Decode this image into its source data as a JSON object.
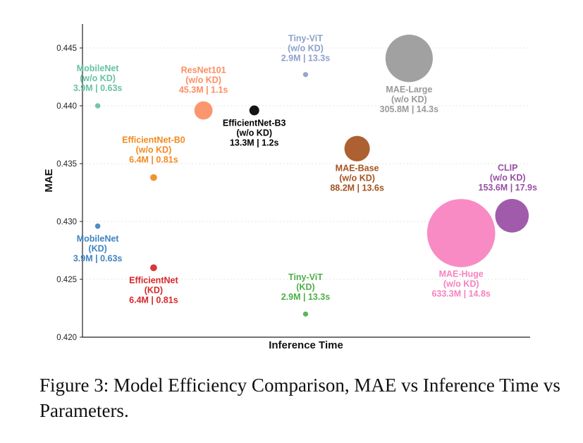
{
  "caption": "Figure 3: Model Efficiency Comparison, MAE vs Inference Time vs Parameters.",
  "chart_data": {
    "type": "scatter",
    "title": "",
    "xlabel": "Inference Time",
    "ylabel": "MAE",
    "ylim": [
      0.42,
      0.447
    ],
    "yticks": [
      0.42,
      0.425,
      0.43,
      0.435,
      0.44,
      0.445
    ],
    "ytick_labels": [
      "0.420",
      "0.425",
      "0.430",
      "0.435",
      "0.440",
      "0.445"
    ],
    "xlim": [
      0,
      18.5
    ],
    "x_ticks_shown": false,
    "grid": "horizontal dotted",
    "size_encodes": "parameters (M)",
    "points": [
      {
        "name": "MobileNet (w/o KD)",
        "label": [
          "MobileNet",
          "(w/o KD)",
          "3.9M | 0.63s"
        ],
        "x": 0.63,
        "y": 0.44,
        "params": 3.9,
        "color": "#66c2a5"
      },
      {
        "name": "MobileNet (KD)",
        "label": [
          "MobileNet",
          "(KD)",
          "3.9M | 0.63s"
        ],
        "x": 0.63,
        "y": 0.4296,
        "params": 3.9,
        "color": "#3f83bf"
      },
      {
        "name": "EfficientNet-B0 (w/o KD)",
        "label": [
          "EfficientNet-B0",
          "(w/o KD)",
          "6.4M | 0.81s"
        ],
        "x": 2.94,
        "y": 0.4338,
        "params": 6.4,
        "color": "#f28a1e"
      },
      {
        "name": "EfficientNet (KD)",
        "label": [
          "EfficientNet",
          "(KD)",
          "6.4M | 0.81s"
        ],
        "x": 2.94,
        "y": 0.426,
        "params": 6.4,
        "color": "#d62728"
      },
      {
        "name": "ResNet101 (w/o KD)",
        "label": [
          "ResNet101",
          "(w/o KD)",
          "45.3M | 1.1s"
        ],
        "x": 5.0,
        "y": 0.4396,
        "params": 45.3,
        "color": "#fc8d62"
      },
      {
        "name": "EfficientNet-B3 (w/o KD)",
        "label": [
          "EfficientNet-B3",
          "(w/o KD)",
          "13.3M | 1.2s"
        ],
        "x": 7.1,
        "y": 0.4396,
        "params": 13.3,
        "color": "#000000"
      },
      {
        "name": "Tiny-ViT (w/o KD)",
        "label": [
          "Tiny-ViT",
          "(w/o KD)",
          "2.9M | 13.3s"
        ],
        "x": 9.22,
        "y": 0.4427,
        "params": 2.9,
        "color": "#8da0cb"
      },
      {
        "name": "Tiny-ViT (KD)",
        "label": [
          "Tiny-ViT",
          "(KD)",
          "2.9M | 13.3s"
        ],
        "x": 9.22,
        "y": 0.422,
        "params": 2.9,
        "color": "#4daf4a"
      },
      {
        "name": "MAE-Base (w/o KD)",
        "label": [
          "MAE-Base",
          "(w/o KD)",
          "88.2M | 13.6s"
        ],
        "x": 11.35,
        "y": 0.4363,
        "params": 88.2,
        "color": "#a6521f"
      },
      {
        "name": "MAE-Large (w/o KD)",
        "label": [
          "MAE-Large",
          "(w/o KD)",
          "305.8M | 14.3s"
        ],
        "x": 13.5,
        "y": 0.4441,
        "params": 305.8,
        "color": "#999999"
      },
      {
        "name": "MAE-Huge (w/o KD)",
        "label": [
          "MAE-Huge",
          "(w/o KD)",
          "633.3M | 14.8s"
        ],
        "x": 15.65,
        "y": 0.429,
        "params": 633.3,
        "color": "#f781bf"
      },
      {
        "name": "CLIP (w/o KD)",
        "label": [
          "CLIP",
          "(w/o KD)",
          "153.6M | 17.9s"
        ],
        "x": 17.75,
        "y": 0.4305,
        "params": 153.6,
        "color": "#984ea3"
      }
    ]
  }
}
